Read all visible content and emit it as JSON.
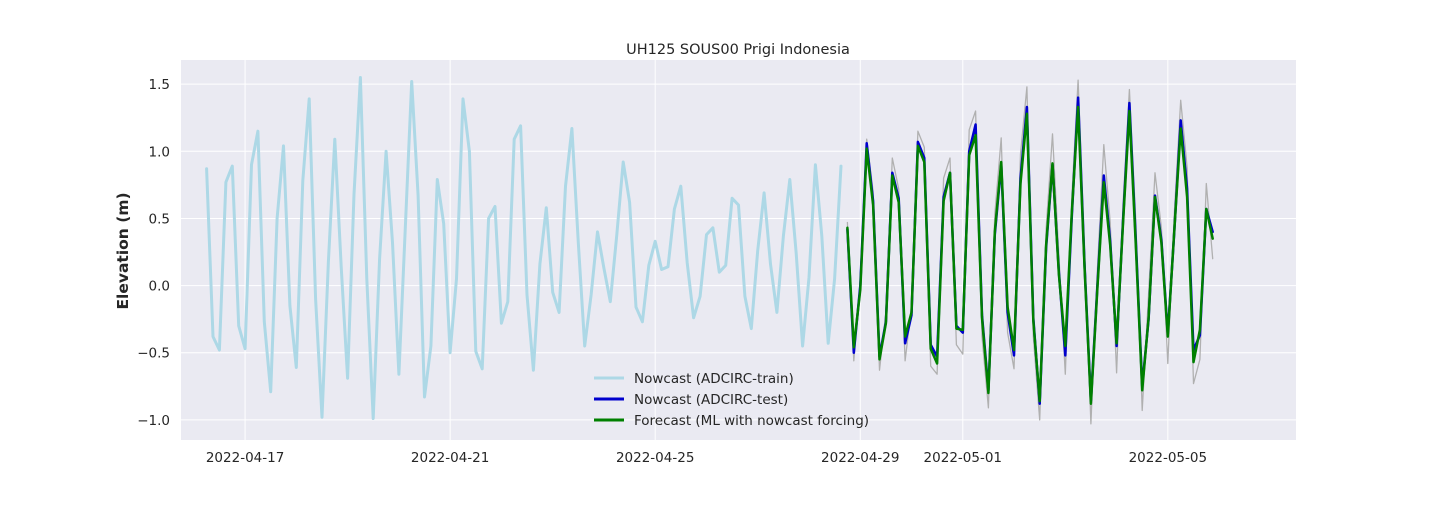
{
  "chart_data": {
    "type": "line",
    "title": "UH125 SOUS00 Prigi Indonesia",
    "xlabel": "",
    "ylabel": "Elevation (m)",
    "xlim": [
      "2022-04-15T18:00",
      "2022-05-07T12:00"
    ],
    "ylim": [
      -1.15,
      1.68
    ],
    "x_ticks": [
      "2022-04-17",
      "2022-04-21",
      "2022-04-25",
      "2022-04-29",
      "2022-05-01",
      "2022-05-05"
    ],
    "y_ticks": [
      -1.0,
      -0.5,
      0.0,
      0.5,
      1.0,
      1.5
    ],
    "y_tick_labels": [
      "−1.0",
      "−0.5",
      "0.0",
      "0.5",
      "1.0",
      "1.5"
    ],
    "grid": true,
    "legend_position": "lower-center",
    "colors": {
      "background": "#eaeaf2",
      "grid": "#ffffff",
      "train": "#add8e6",
      "test": "#0000cd",
      "forecast": "#008000",
      "observed": "#b0b0b0"
    },
    "series": [
      {
        "name": "Nowcast (ADCIRC-train)",
        "color": "#add8e6",
        "width": 3,
        "start": "2022-04-16T06:00",
        "step_hours": 3,
        "values": [
          0.87,
          -0.38,
          -0.48,
          0.77,
          0.89,
          -0.3,
          -0.47,
          0.9,
          1.15,
          -0.27,
          -0.79,
          0.5,
          1.04,
          -0.15,
          -0.61,
          0.78,
          1.39,
          -0.1,
          -0.98,
          0.18,
          1.09,
          0.14,
          -0.69,
          0.68,
          1.55,
          0.05,
          -0.99,
          0.2,
          1.0,
          0.32,
          -0.66,
          0.43,
          1.52,
          0.67,
          -0.83,
          -0.45,
          0.79,
          0.46,
          -0.5,
          0.05,
          1.39,
          1.0,
          -0.49,
          -0.62,
          0.5,
          0.59,
          -0.28,
          -0.12,
          1.09,
          1.19,
          -0.07,
          -0.63,
          0.16,
          0.58,
          -0.05,
          -0.2,
          0.74,
          1.17,
          0.32,
          -0.45,
          -0.07,
          0.4,
          0.13,
          -0.12,
          0.37,
          0.92,
          0.62,
          -0.16,
          -0.27,
          0.15,
          0.33,
          0.12,
          0.14,
          0.57,
          0.74,
          0.17,
          -0.24,
          -0.08,
          0.38,
          0.43,
          0.1,
          0.15,
          0.65,
          0.6,
          -0.08,
          -0.32,
          0.26,
          0.69,
          0.16,
          -0.2,
          0.37,
          0.79,
          0.24,
          -0.45,
          0.06,
          0.9,
          0.37,
          -0.43,
          0.05,
          0.89
        ]
      },
      {
        "name": "Nowcast (ADCIRC-test)",
        "color": "#0000cd",
        "width": 2.5,
        "start": "2022-04-28T18:00",
        "step_hours": 3,
        "values": [
          0.42,
          -0.5,
          0.0,
          1.06,
          0.63,
          -0.53,
          -0.27,
          0.84,
          0.65,
          -0.43,
          -0.22,
          1.07,
          0.95,
          -0.44,
          -0.53,
          0.66,
          0.84,
          -0.3,
          -0.35,
          1.0,
          1.2,
          -0.22,
          -0.78,
          0.38,
          0.9,
          -0.2,
          -0.52,
          0.8,
          1.33,
          -0.24,
          -0.88,
          0.28,
          0.9,
          0.1,
          -0.52,
          0.5,
          1.4,
          0.16,
          -0.86,
          0.0,
          0.82,
          0.33,
          -0.45,
          0.48,
          1.36,
          0.34,
          -0.75,
          -0.25,
          0.67,
          0.34,
          -0.36,
          0.39,
          1.23,
          0.72,
          -0.48,
          -0.37,
          0.57,
          0.4
        ]
      },
      {
        "name": "Forecast (ML with nowcast forcing)",
        "color": "#008000",
        "width": 2.5,
        "start": "2022-04-28T18:00",
        "step_hours": 3,
        "values": [
          0.43,
          -0.46,
          -0.03,
          1.02,
          0.6,
          -0.55,
          -0.28,
          0.82,
          0.62,
          -0.38,
          -0.2,
          1.04,
          0.92,
          -0.47,
          -0.58,
          0.63,
          0.84,
          -0.32,
          -0.33,
          0.97,
          1.12,
          -0.24,
          -0.8,
          0.4,
          0.92,
          -0.16,
          -0.48,
          0.76,
          1.28,
          -0.26,
          -0.86,
          0.3,
          0.91,
          0.08,
          -0.45,
          0.53,
          1.33,
          0.14,
          -0.88,
          -0.02,
          0.77,
          0.3,
          -0.43,
          0.46,
          1.3,
          0.3,
          -0.78,
          -0.24,
          0.66,
          0.32,
          -0.38,
          0.4,
          1.17,
          0.66,
          -0.57,
          -0.33,
          0.57,
          0.35
        ]
      },
      {
        "color": "#b0b0b0",
        "width": 1.3,
        "start": "2022-04-28T18:00",
        "step_hours": 3,
        "values": [
          0.47,
          -0.56,
          0.05,
          1.09,
          0.7,
          -0.63,
          -0.2,
          0.95,
          0.72,
          -0.56,
          -0.16,
          1.15,
          1.03,
          -0.6,
          -0.66,
          0.8,
          0.95,
          -0.44,
          -0.51,
          1.16,
          1.3,
          -0.38,
          -0.91,
          0.53,
          1.1,
          -0.35,
          -0.62,
          0.98,
          1.48,
          -0.38,
          -1.0,
          0.42,
          1.13,
          0.22,
          -0.66,
          0.64,
          1.53,
          0.3,
          -1.03,
          0.12,
          1.05,
          0.47,
          -0.65,
          0.6,
          1.46,
          0.48,
          -0.93,
          -0.06,
          0.84,
          0.43,
          -0.58,
          0.52,
          1.38,
          0.88,
          -0.73,
          -0.55,
          0.76,
          0.2
        ]
      }
    ]
  }
}
